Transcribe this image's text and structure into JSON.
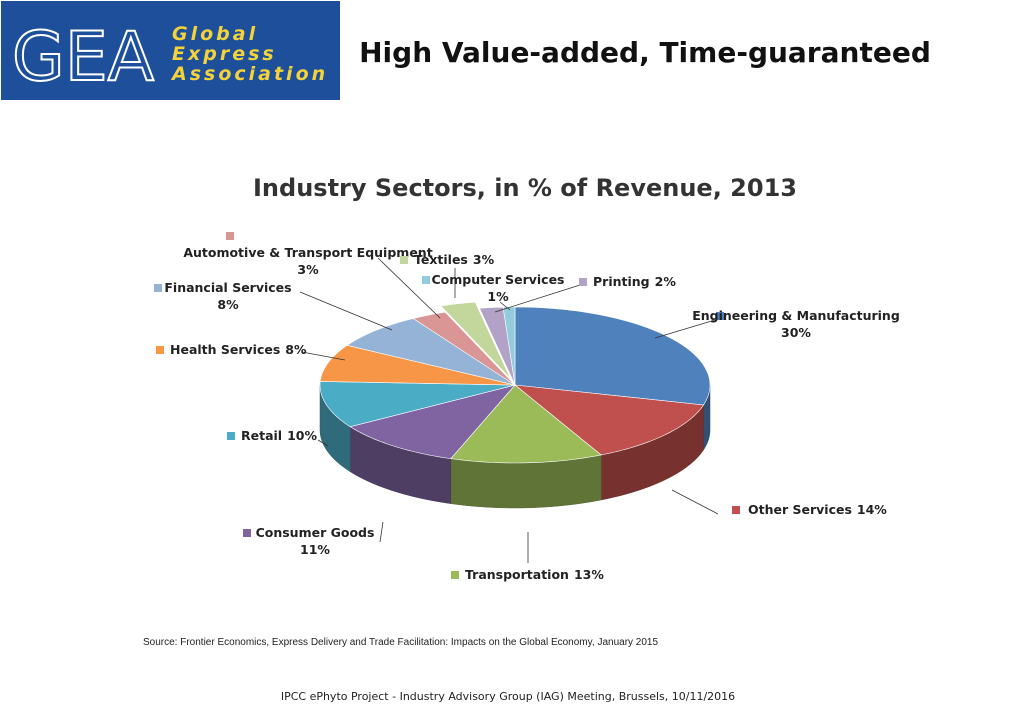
{
  "header": {
    "logo_mark": "GEA",
    "logo_text": [
      "Global",
      "Express",
      "Association"
    ],
    "title": "High Value-added, Time-guaranteed"
  },
  "chart_data": {
    "type": "pie",
    "title": "Industry Sectors, in % of Revenue, 2013",
    "categories": [
      "Engineering & Manufacturing",
      "Other Services",
      "Transportation",
      "Consumer Goods",
      "Retail",
      "Health Services",
      "Financial Services",
      "Automotive & Transport Equipment",
      "Textiles",
      "Printing",
      "Computer Services"
    ],
    "values": [
      30,
      14,
      13,
      11,
      10,
      8,
      8,
      3,
      3,
      2,
      1
    ],
    "value_labels": [
      "30%",
      "14%",
      "13%",
      "11%",
      "10%",
      "8%",
      "8%",
      "3%",
      "3%",
      "2%",
      "1%"
    ],
    "colors": [
      "#4f81bd",
      "#c0504d",
      "#9bbb59",
      "#8064a2",
      "#4bacc6",
      "#f79646",
      "#95b3d7",
      "#d99694",
      "#c3d69b",
      "#b3a2c7",
      "#93cddd"
    ]
  },
  "source": "Source: Frontier Economics, Express Delivery and Trade Facilitation: Impacts on the Global Economy, January 2015",
  "footer": "IPCC ePhyto Project - Industry Advisory Group (IAG) Meeting, Brussels, 10/11/2016"
}
